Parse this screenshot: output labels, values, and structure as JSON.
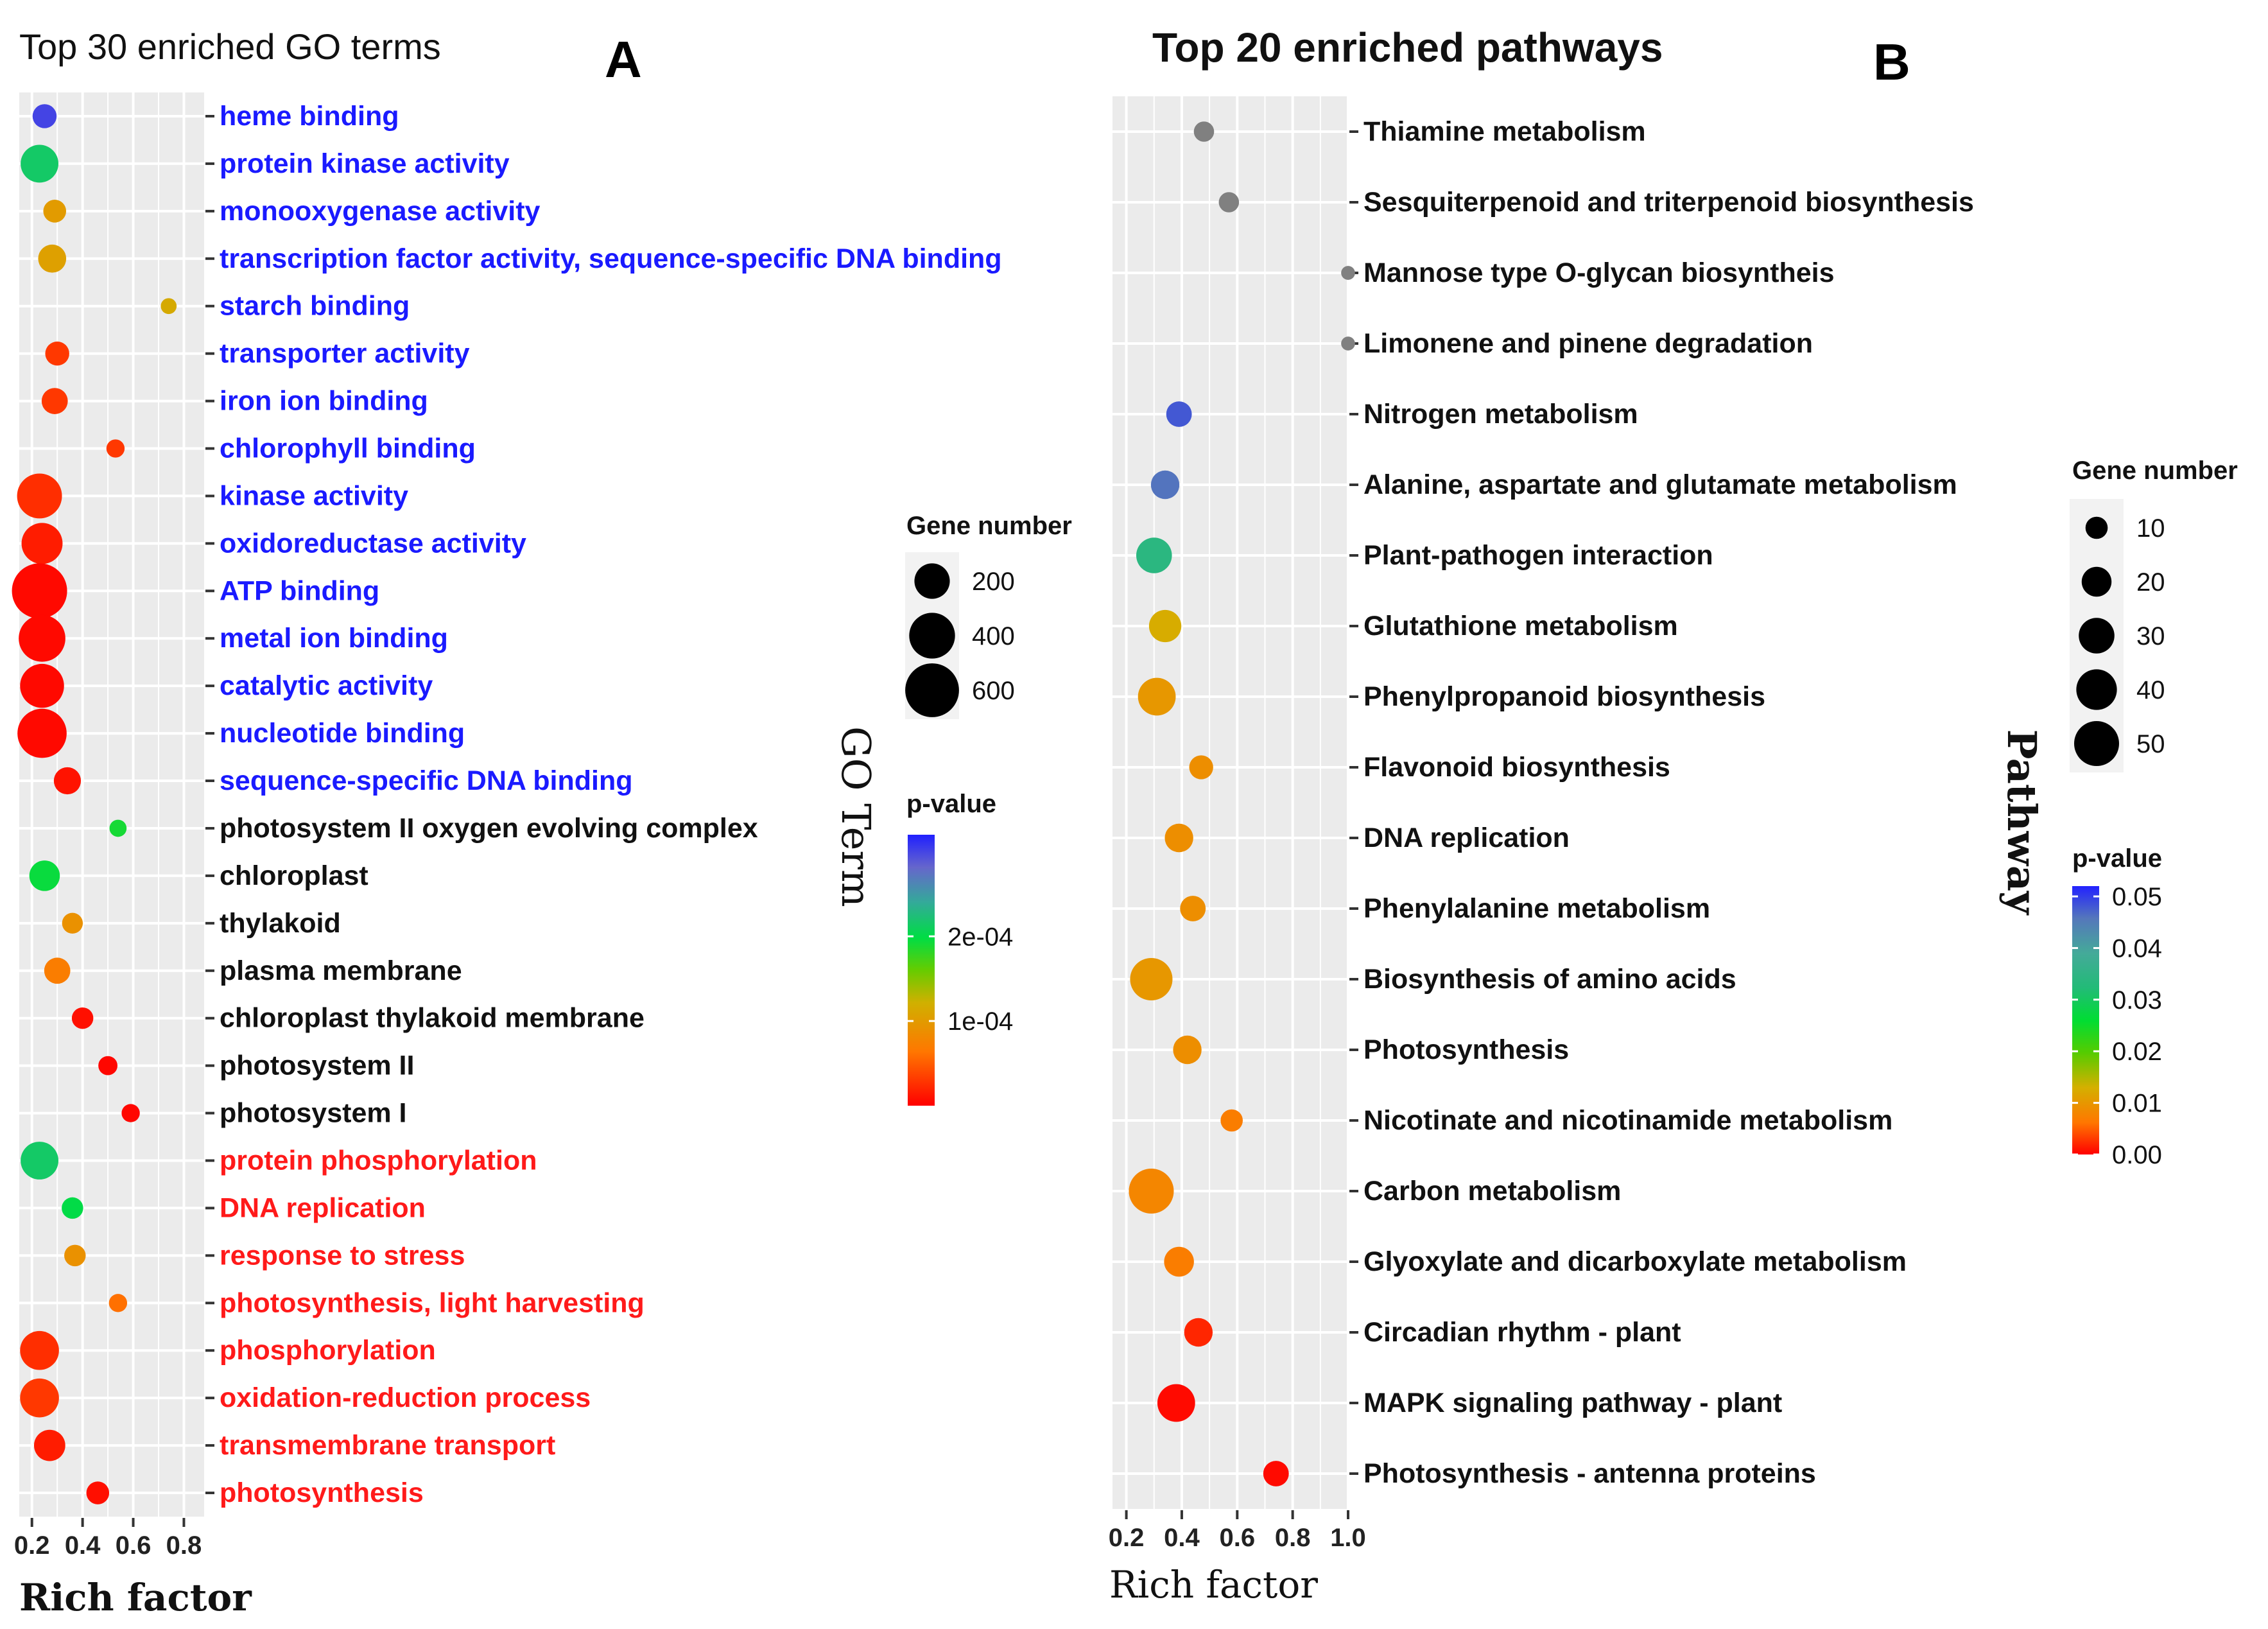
{
  "chart_data": [
    {
      "type": "scatter",
      "panel": "A",
      "title": "Top 30 enriched GO terms",
      "xlabel": "Rich factor",
      "ylabel": "GO Term",
      "xlim": [
        0.15,
        0.88
      ],
      "xticks": [
        "0.2",
        "0.4",
        "0.6",
        "0.8"
      ],
      "xtick_values": [
        0.2,
        0.4,
        0.6,
        0.8
      ],
      "colors": {
        "blue": "#1a1aff",
        "black": "#111111",
        "red": "#ff1a1a"
      },
      "categories": [
        {
          "label": "heme binding",
          "rich": 0.25,
          "genes": 60,
          "pvalue": 0.0003,
          "color": "blue"
        },
        {
          "label": "protein kinase activity",
          "rich": 0.23,
          "genes": 240,
          "pvalue": 0.000215,
          "color": "blue"
        },
        {
          "label": "monooxygenase activity",
          "rich": 0.29,
          "genes": 50,
          "pvalue": 0.0001,
          "color": "blue"
        },
        {
          "label": "transcription factor activity, sequence-specific DNA binding",
          "rich": 0.28,
          "genes": 100,
          "pvalue": 0.000105,
          "color": "blue"
        },
        {
          "label": "starch binding",
          "rich": 0.74,
          "genes": 10,
          "pvalue": 0.000115,
          "color": "blue"
        },
        {
          "label": "transporter activity",
          "rich": 0.3,
          "genes": 60,
          "pvalue": 3e-05,
          "color": "blue"
        },
        {
          "label": "iron ion binding",
          "rich": 0.29,
          "genes": 80,
          "pvalue": 3e-05,
          "color": "blue"
        },
        {
          "label": "chlorophyll binding",
          "rich": 0.53,
          "genes": 20,
          "pvalue": 3e-05,
          "color": "blue"
        },
        {
          "label": "kinase activity",
          "rich": 0.23,
          "genes": 380,
          "pvalue": 2.5e-05,
          "color": "blue"
        },
        {
          "label": "oxidoreductase activity",
          "rich": 0.24,
          "genes": 300,
          "pvalue": 1.5e-05,
          "color": "blue"
        },
        {
          "label": "ATP binding",
          "rich": 0.23,
          "genes": 640,
          "pvalue": 5e-06,
          "color": "blue"
        },
        {
          "label": "metal ion binding",
          "rich": 0.24,
          "genes": 420,
          "pvalue": 5e-06,
          "color": "blue"
        },
        {
          "label": "catalytic activity",
          "rich": 0.24,
          "genes": 360,
          "pvalue": 5e-06,
          "color": "blue"
        },
        {
          "label": "nucleotide binding",
          "rich": 0.24,
          "genes": 480,
          "pvalue": 5e-06,
          "color": "blue"
        },
        {
          "label": "sequence-specific DNA binding",
          "rich": 0.34,
          "genes": 90,
          "pvalue": 1e-05,
          "color": "blue"
        },
        {
          "label": "photosystem II oxygen evolving complex",
          "rich": 0.54,
          "genes": 15,
          "pvalue": 0.00019,
          "color": "black"
        },
        {
          "label": "chloroplast",
          "rich": 0.25,
          "genes": 130,
          "pvalue": 0.000195,
          "color": "black"
        },
        {
          "label": "thylakoid",
          "rich": 0.36,
          "genes": 35,
          "pvalue": 9e-05,
          "color": "black"
        },
        {
          "label": "plasma membrane",
          "rich": 0.3,
          "genes": 80,
          "pvalue": 7e-05,
          "color": "black"
        },
        {
          "label": "chloroplast thylakoid membrane",
          "rich": 0.4,
          "genes": 40,
          "pvalue": 8e-06,
          "color": "black"
        },
        {
          "label": "photosystem II",
          "rich": 0.5,
          "genes": 25,
          "pvalue": 4e-06,
          "color": "black"
        },
        {
          "label": "photosystem I",
          "rich": 0.59,
          "genes": 20,
          "pvalue": 4e-06,
          "color": "black"
        },
        {
          "label": "protein phosphorylation",
          "rich": 0.23,
          "genes": 240,
          "pvalue": 0.000215,
          "color": "red"
        },
        {
          "label": "DNA replication",
          "rich": 0.36,
          "genes": 40,
          "pvalue": 0.0002,
          "color": "red"
        },
        {
          "label": "response to stress",
          "rich": 0.37,
          "genes": 40,
          "pvalue": 9e-05,
          "color": "red"
        },
        {
          "label": "photosynthesis, light harvesting",
          "rich": 0.54,
          "genes": 20,
          "pvalue": 6e-05,
          "color": "red"
        },
        {
          "label": "phosphorylation",
          "rich": 0.23,
          "genes": 260,
          "pvalue": 2.5e-05,
          "color": "red"
        },
        {
          "label": "oxidation-reduction process",
          "rich": 0.23,
          "genes": 260,
          "pvalue": 3e-05,
          "color": "red"
        },
        {
          "label": "transmembrane transport",
          "rich": 0.27,
          "genes": 140,
          "pvalue": 1.5e-05,
          "color": "red"
        },
        {
          "label": "photosynthesis",
          "rich": 0.46,
          "genes": 50,
          "pvalue": 8e-06,
          "color": "red"
        }
      ],
      "legend_size": {
        "title": "Gene number",
        "values": [
          200,
          400,
          600
        ],
        "labels": [
          "200",
          "400",
          "600"
        ]
      },
      "legend_color": {
        "title": "p-value",
        "tick_labels": [
          "2e-04",
          "1e-04"
        ],
        "tick_values": [
          0.0002,
          0.0001
        ],
        "range": [
          0.0,
          0.00032
        ]
      }
    },
    {
      "type": "scatter",
      "panel": "B",
      "title": "Top 20 enriched pathways",
      "xlabel": "Rich factor",
      "ylabel": "Pathway",
      "xlim": [
        0.15,
        1.0
      ],
      "xticks": [
        "0.2",
        "0.4",
        "0.6",
        "0.8",
        "1.0"
      ],
      "xtick_values": [
        0.2,
        0.4,
        0.6,
        0.8,
        1.0
      ],
      "categories": [
        {
          "label": "Thiamine metabolism",
          "rich": 0.48,
          "genes": 8,
          "pvalue": null
        },
        {
          "label": "Sesquiterpenoid and triterpenoid biosynthesis",
          "rich": 0.57,
          "genes": 8,
          "pvalue": null
        },
        {
          "label": "Mannose type O-glycan biosyntheis",
          "rich": 1.0,
          "genes": 3,
          "pvalue": null
        },
        {
          "label": "Limonene and pinene degradation",
          "rich": 1.0,
          "genes": 3,
          "pvalue": null
        },
        {
          "label": "Nitrogen metabolism",
          "rich": 0.39,
          "genes": 14,
          "pvalue": 0.048
        },
        {
          "label": "Alanine, aspartate and glutamate metabolism",
          "rich": 0.34,
          "genes": 18,
          "pvalue": 0.046
        },
        {
          "label": "Plant-pathogen interaction",
          "rich": 0.3,
          "genes": 30,
          "pvalue": 0.034
        },
        {
          "label": "Glutathione metabolism",
          "rich": 0.34,
          "genes": 24,
          "pvalue": 0.0125
        },
        {
          "label": "Phenylpropanoid biosynthesis",
          "rich": 0.31,
          "genes": 34,
          "pvalue": 0.01
        },
        {
          "label": "Flavonoid biosynthesis",
          "rich": 0.47,
          "genes": 12,
          "pvalue": 0.009
        },
        {
          "label": "DNA replication",
          "rich": 0.39,
          "genes": 18,
          "pvalue": 0.009
        },
        {
          "label": "Phenylalanine metabolism",
          "rich": 0.44,
          "genes": 14,
          "pvalue": 0.009
        },
        {
          "label": "Biosynthesis of amino acids",
          "rich": 0.29,
          "genes": 44,
          "pvalue": 0.01
        },
        {
          "label": "Photosynthesis",
          "rich": 0.42,
          "genes": 18,
          "pvalue": 0.009
        },
        {
          "label": "Nicotinate and nicotinamide metabolism",
          "rich": 0.58,
          "genes": 10,
          "pvalue": 0.007
        },
        {
          "label": "Carbon metabolism",
          "rich": 0.29,
          "genes": 50,
          "pvalue": 0.008
        },
        {
          "label": "Glyoxylate and dicarboxylate metabolism",
          "rich": 0.39,
          "genes": 20,
          "pvalue": 0.007
        },
        {
          "label": "Circadian rhythm - plant",
          "rich": 0.46,
          "genes": 18,
          "pvalue": 0.002
        },
        {
          "label": "MAPK signaling pathway - plant",
          "rich": 0.38,
          "genes": 34,
          "pvalue": 0.0005
        },
        {
          "label": "Photosynthesis - antenna proteins",
          "rich": 0.74,
          "genes": 14,
          "pvalue": 0.0005
        }
      ],
      "na_color": "#808080",
      "legend_size": {
        "title": "Gene number",
        "values": [
          10,
          20,
          30,
          40,
          50
        ],
        "labels": [
          "10",
          "20",
          "30",
          "40",
          "50"
        ]
      },
      "legend_color": {
        "title": "p-value",
        "tick_labels": [
          "0.05",
          "0.04",
          "0.03",
          "0.02",
          "0.01",
          "0.00"
        ],
        "tick_values": [
          0.05,
          0.04,
          0.03,
          0.02,
          0.01,
          0.0
        ],
        "range": [
          0.0,
          0.052
        ]
      }
    }
  ]
}
